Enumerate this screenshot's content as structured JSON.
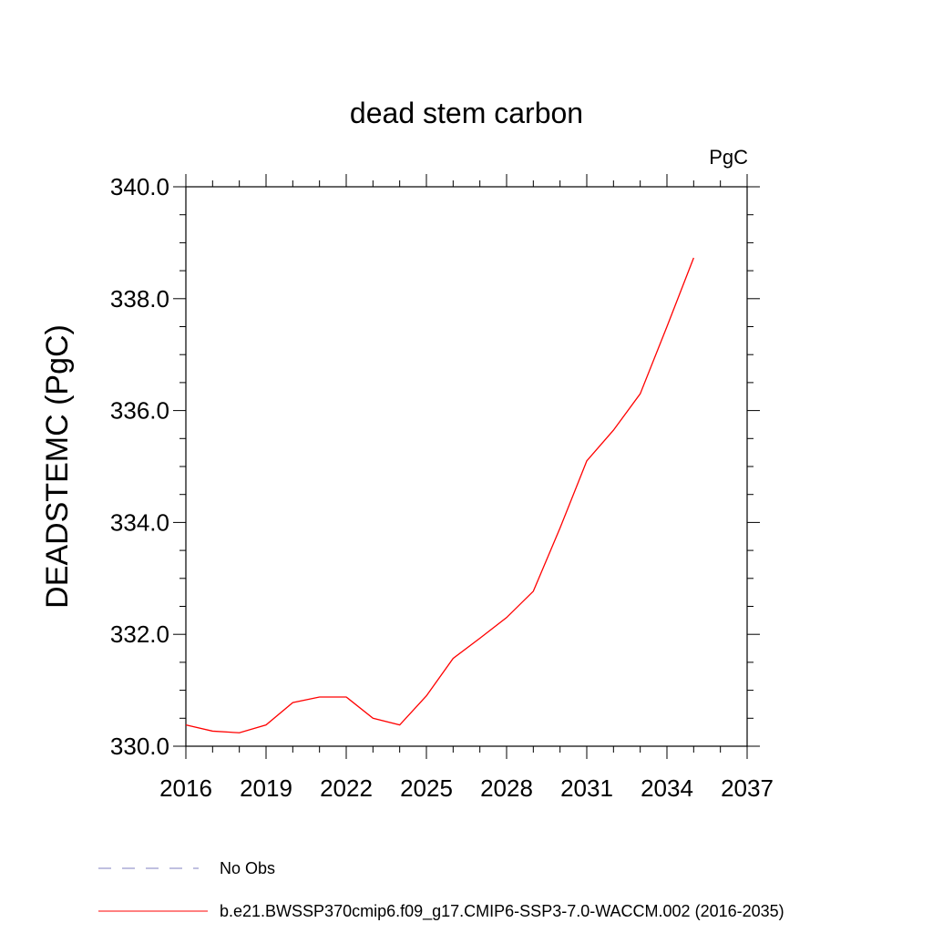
{
  "chart_data": {
    "type": "line",
    "title": "dead stem carbon",
    "units": "PgC",
    "ylabel": "DEADSTEMC  (PgC)",
    "xlabel": "",
    "xlim": [
      2016,
      2037
    ],
    "ylim": [
      330.0,
      340.0
    ],
    "x_ticks": [
      "2016",
      "2019",
      "2022",
      "2025",
      "2028",
      "2031",
      "2034",
      "2037"
    ],
    "y_ticks": [
      "330.0",
      "332.0",
      "334.0",
      "336.0",
      "338.0",
      "340.0"
    ],
    "series": [
      {
        "name": "b.e21.BWSSP370cmip6.f09_g17.CMIP6-SSP3-7.0-WACCM.002 (2016-2035)",
        "color": "#ff0000",
        "style": "solid",
        "x": [
          2016,
          2017,
          2018,
          2019,
          2020,
          2021,
          2022,
          2023,
          2024,
          2025,
          2026,
          2027,
          2028,
          2029,
          2030,
          2031,
          2032,
          2033,
          2034,
          2035
        ],
        "values": [
          330.38,
          330.27,
          330.24,
          330.38,
          330.78,
          330.88,
          330.88,
          330.5,
          330.38,
          330.9,
          331.57,
          331.93,
          332.3,
          332.77,
          333.9,
          335.1,
          335.65,
          336.3,
          337.5,
          338.73
        ]
      }
    ],
    "legend": [
      {
        "label": "No Obs",
        "color": "#8080c0",
        "style": "dashed"
      },
      {
        "label": "b.e21.BWSSP370cmip6.f09_g17.CMIP6-SSP3-7.0-WACCM.002 (2016-2035)",
        "color": "#ff0000",
        "style": "solid"
      }
    ],
    "legend_position": "bottom-left",
    "grid": false
  }
}
